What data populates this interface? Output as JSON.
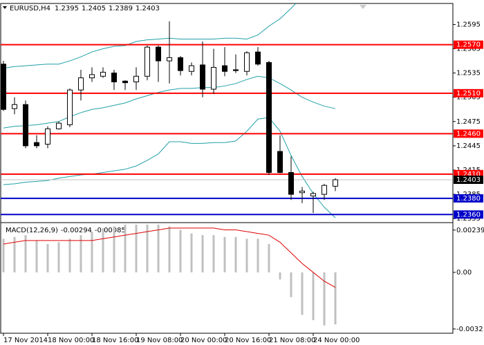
{
  "chart_data": [
    {
      "type": "candlestick",
      "title": "EURUSD,H4",
      "categories": [
        "17 Nov 2014",
        null,
        null,
        null,
        "18 Nov 00:00",
        null,
        null,
        null,
        "18 Nov 16:00",
        null,
        null,
        null,
        "19 Nov 08:00",
        null,
        null,
        null,
        "20 Nov 00:00",
        null,
        null,
        null,
        "20 Nov 16:00",
        null,
        null,
        null,
        "21 Nov 08:00",
        null,
        null,
        null,
        "24 Nov 00:00",
        null,
        null
      ],
      "open": [
        1.2546,
        1.2491,
        1.2496,
        1.2449,
        1.2447,
        1.2466,
        1.2471,
        1.2514,
        1.2529,
        1.2531,
        1.2535,
        1.2525,
        1.2524,
        1.2531,
        1.2567,
        1.255,
        1.2554,
        1.2537,
        1.2545,
        1.2515,
        1.2544,
        1.2539,
        1.2537,
        1.2561,
        1.2548,
        1.2438,
        1.2412,
        1.2387,
        1.2383,
        1.2385,
        1.2395
      ],
      "high": [
        1.255,
        1.2505,
        1.2501,
        1.2458,
        1.2469,
        1.2475,
        1.2516,
        1.2539,
        1.2542,
        1.2542,
        1.2539,
        1.2526,
        1.2542,
        1.2569,
        1.2569,
        1.2599,
        1.2556,
        1.2548,
        1.2574,
        1.2565,
        1.2567,
        1.2558,
        1.2562,
        1.2567,
        1.255,
        1.2458,
        1.2432,
        1.2394,
        1.2388,
        1.2398,
        1.2405
      ],
      "low": [
        1.2488,
        1.2484,
        1.2442,
        1.2442,
        1.2442,
        1.2465,
        1.2468,
        1.2501,
        1.2524,
        1.2529,
        1.2514,
        1.2514,
        1.2514,
        1.2526,
        1.2524,
        1.2522,
        1.2532,
        1.2532,
        1.2505,
        1.2509,
        1.2531,
        1.2535,
        1.2532,
        1.2544,
        1.2409,
        1.2411,
        1.2378,
        1.2374,
        1.2362,
        1.2378,
        1.2389
      ],
      "close": [
        1.249,
        1.2496,
        1.2445,
        1.2445,
        1.2466,
        1.2473,
        1.2514,
        1.2529,
        1.2533,
        1.2536,
        1.2524,
        1.2523,
        1.2531,
        1.2567,
        1.255,
        1.2554,
        1.2538,
        1.2544,
        1.2515,
        1.2542,
        1.2537,
        1.2538,
        1.256,
        1.2546,
        1.2412,
        1.2412,
        1.2385,
        1.2389,
        1.2386,
        1.2396,
        1.2403
      ],
      "bull_color": "#ffffff",
      "bear_color": "#000000",
      "wick_color": "#000000",
      "bands": [
        {
          "color": "#20a0a8",
          "values": [
            1.2541,
            1.2543,
            1.2544,
            1.2545,
            1.2546,
            1.2546,
            1.255,
            1.2555,
            1.2561,
            1.2565,
            1.2568,
            1.2569,
            1.2574,
            1.2576,
            1.2577,
            1.2578,
            1.2577,
            1.2577,
            1.2577,
            1.2577,
            1.2578,
            1.2578,
            1.2577,
            1.2582,
            1.2593,
            1.2602,
            1.2615,
            1.2629,
            1.2638,
            1.2644,
            1.2646
          ]
        },
        {
          "color": "#20a0a8",
          "values": [
            1.2467,
            1.2469,
            1.247,
            1.2471,
            1.2473,
            1.2475,
            1.2481,
            1.2486,
            1.249,
            1.2492,
            1.2495,
            1.2498,
            1.2503,
            1.2507,
            1.2511,
            1.2514,
            1.2516,
            1.2516,
            1.2517,
            1.2517,
            1.2519,
            1.2522,
            1.2527,
            1.2531,
            1.2529,
            1.2522,
            1.2514,
            1.2505,
            1.2499,
            1.2494,
            1.2491
          ]
        },
        {
          "color": "#20a0a8",
          "values": [
            1.2397,
            1.2398,
            1.24,
            1.2401,
            1.2402,
            1.2405,
            1.2407,
            1.2409,
            1.241,
            1.2412,
            1.2414,
            1.2416,
            1.242,
            1.2427,
            1.2435,
            1.245,
            1.245,
            1.2448,
            1.2448,
            1.2449,
            1.2449,
            1.2451,
            1.2463,
            1.2478,
            1.248,
            1.2463,
            1.2433,
            1.2407,
            1.2386,
            1.2369,
            1.2356
          ]
        }
      ],
      "levels": [
        {
          "value": 1.257,
          "label": "1.2570",
          "color": "#ff0000"
        },
        {
          "value": 1.251,
          "label": "1.2510",
          "color": "#ff0000"
        },
        {
          "value": 1.246,
          "label": "1.2460",
          "color": "#ff0000"
        },
        {
          "value": 1.241,
          "label": "1.2410",
          "color": "#ff0000"
        },
        {
          "value": 1.238,
          "label": "1.2380",
          "color": "#0000c8"
        },
        {
          "value": 1.236,
          "label": "1.2360",
          "color": "#0000c8"
        }
      ],
      "price_line_color": "#c0c0c0",
      "ylim": [
        1.235,
        1.2621
      ],
      "yticks": [
        1.2595,
        1.2565,
        1.2535,
        1.2505,
        1.2475,
        1.2445,
        1.2415,
        1.2385,
        1.2355
      ]
    },
    {
      "type": "macd",
      "title": "MACD(12,26,9)",
      "series": [
        {
          "type": "bar",
          "color": "#c0c0c0",
          "values": [
            0.0019,
            0.002,
            0.0021,
            0.0018,
            0.0016,
            0.0017,
            0.0019,
            0.0021,
            0.0023,
            0.0025,
            0.0026,
            0.0027,
            0.0027,
            0.0027,
            0.0027,
            0.0026,
            0.0024,
            0.0022,
            0.0021,
            0.0021,
            0.002,
            0.002,
            0.0019,
            0.0019,
            0.0016,
            -0.0004,
            -0.0014,
            -0.0024,
            -0.0027,
            -0.003,
            -0.00294
          ]
        },
        {
          "type": "line",
          "color": "#e00000",
          "values": [
            0.0016,
            0.0017,
            0.0018,
            0.0018,
            0.0018,
            0.0018,
            0.0018,
            0.0018,
            0.0018,
            0.0019,
            0.002,
            0.0021,
            0.0022,
            0.0023,
            0.0024,
            0.0025,
            0.0025,
            0.0025,
            0.0025,
            0.0025,
            0.0024,
            0.0024,
            0.0023,
            0.0022,
            0.0021,
            0.0017,
            0.0011,
            0.0005,
            0.0,
            -0.0005,
            -0.00085
          ]
        }
      ],
      "ylim": [
        -0.00344,
        0.00281
      ],
      "yticks": [
        0.00239,
        {
          "value": 0,
          "label": "0.00"
        },
        -0.0032
      ]
    }
  ]
}
